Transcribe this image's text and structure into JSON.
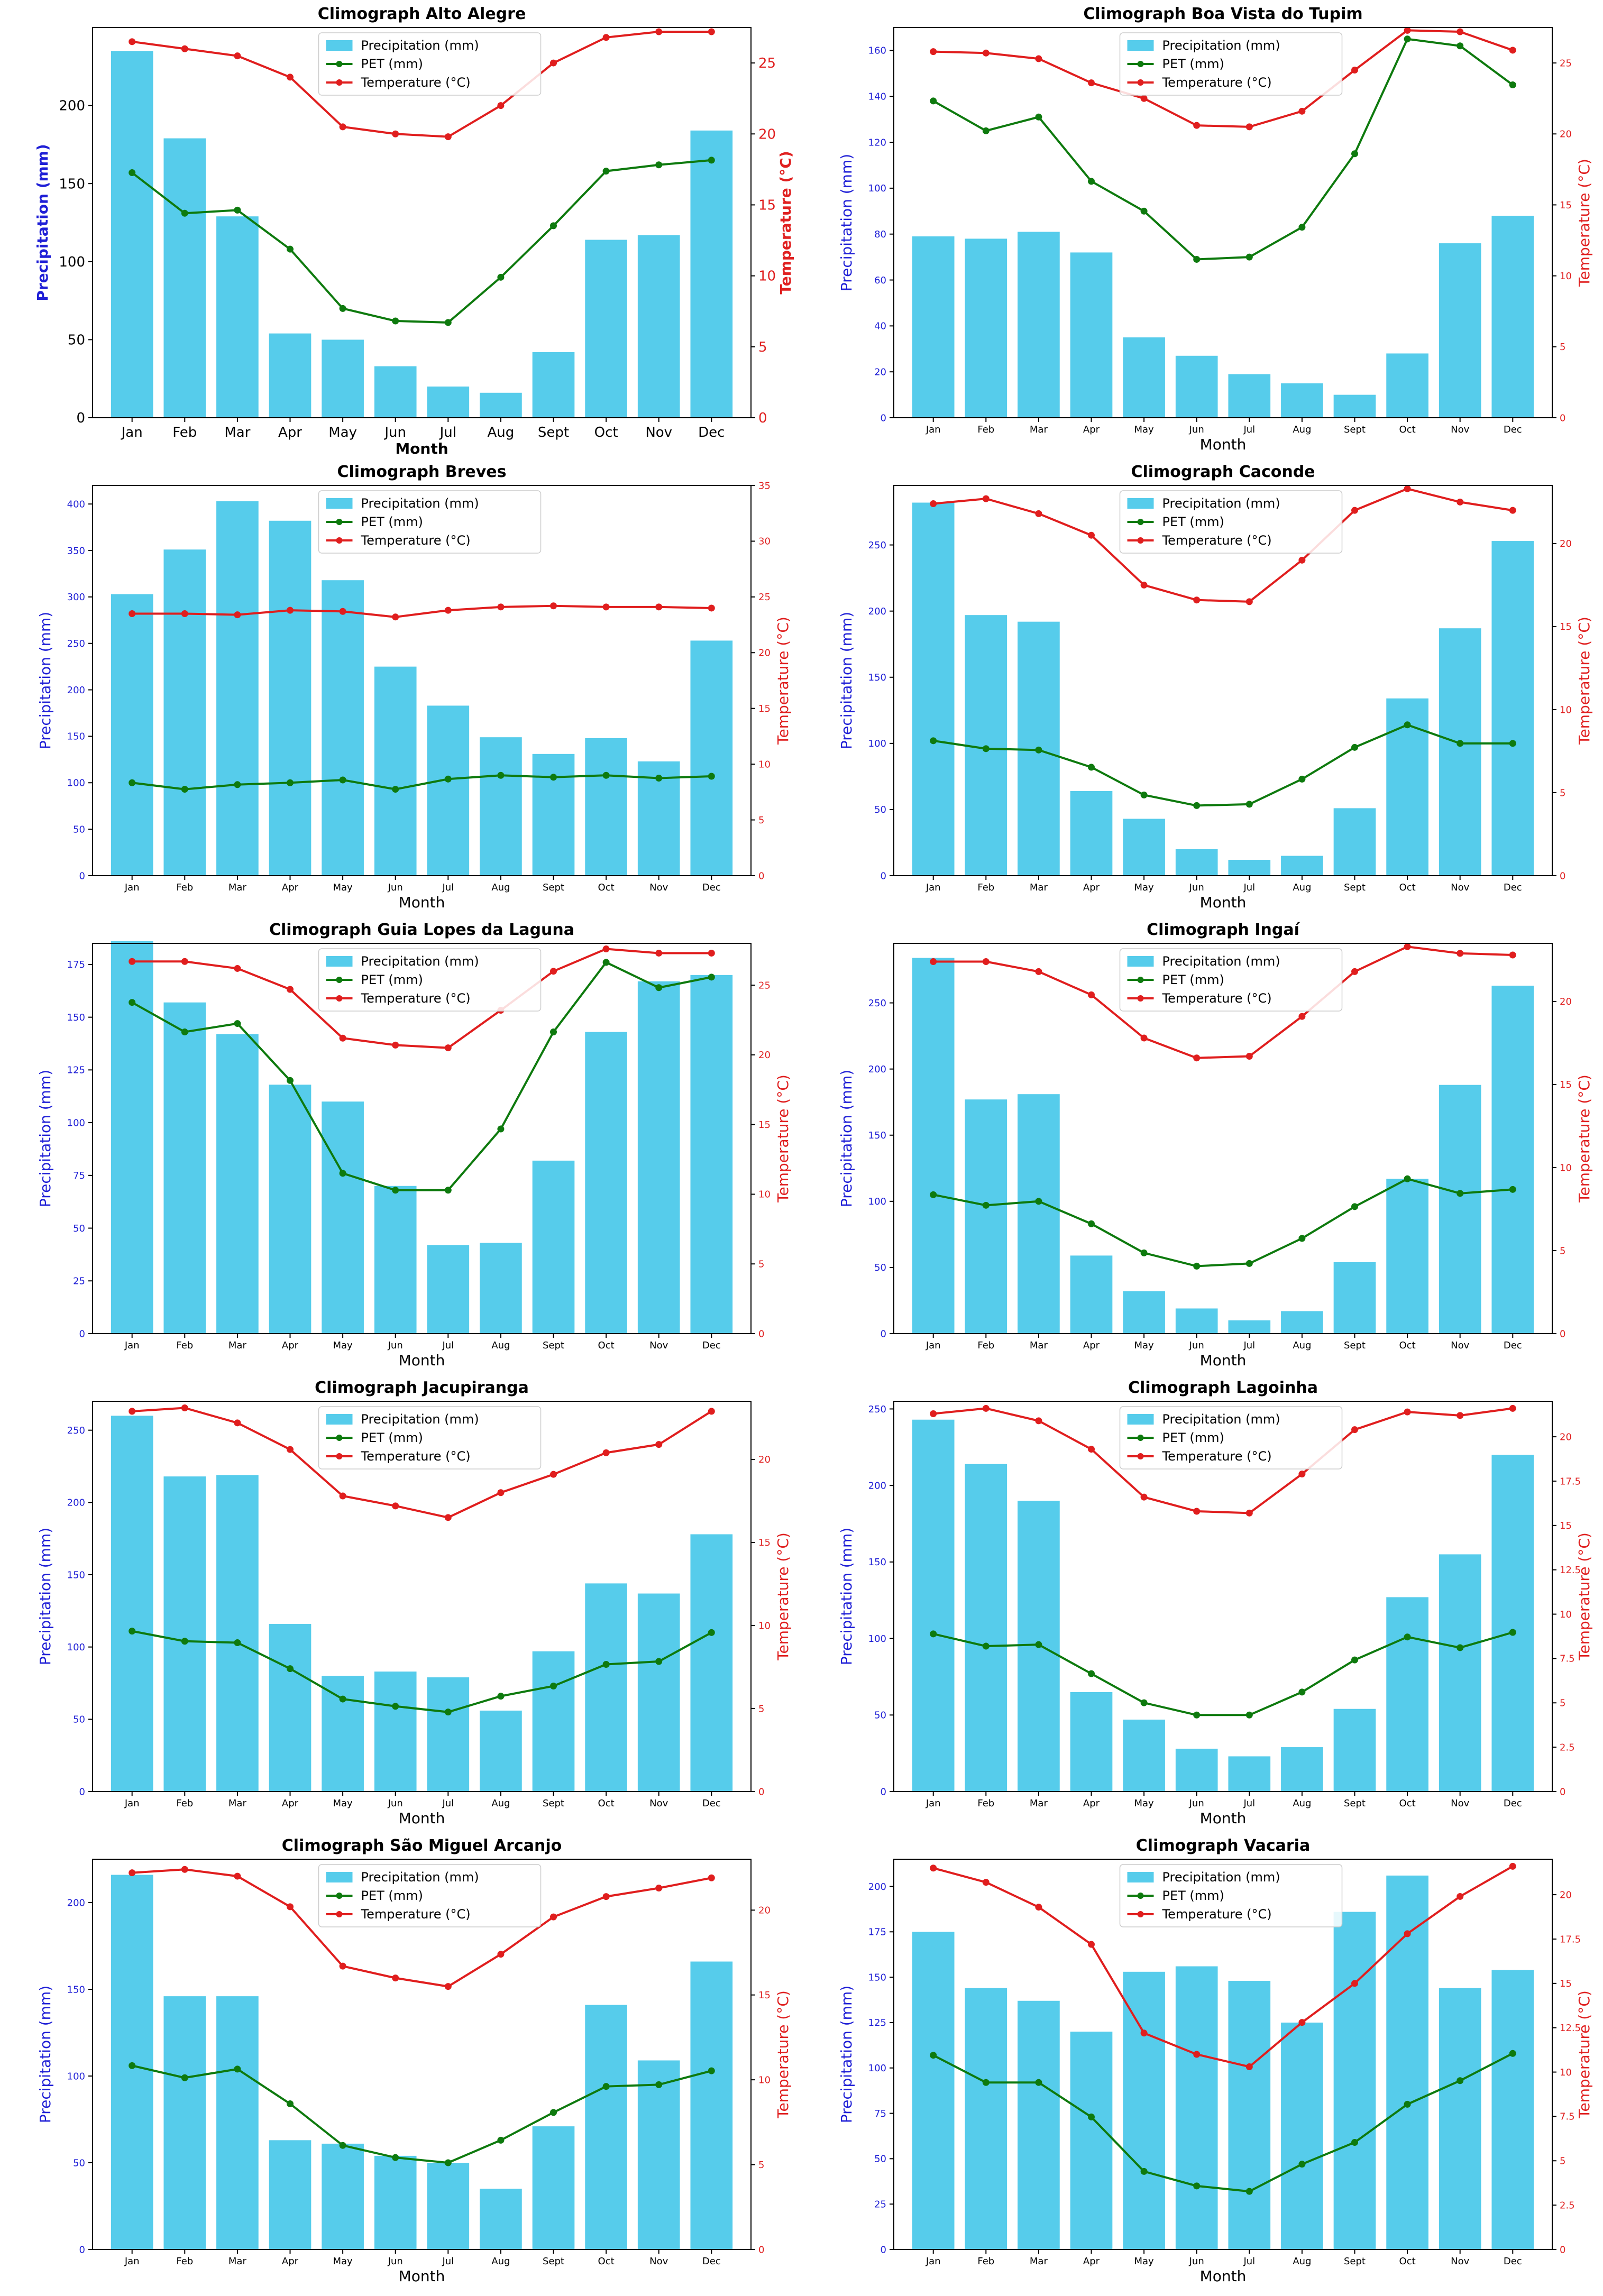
{
  "chart_data": [
    {
      "type": "bar",
      "title": "Climograph Alto Alegre",
      "xlabel": "Month",
      "ylabel_left": "Precipitation (mm)",
      "ylabel_right": "Temperature (°C)",
      "categories": [
        "Jan",
        "Feb",
        "Mar",
        "Apr",
        "May",
        "Jun",
        "Jul",
        "Aug",
        "Sept",
        "Oct",
        "Nov",
        "Dec"
      ],
      "ylim_left": [
        0,
        250
      ],
      "yticks_left": [
        0,
        50,
        100,
        150,
        200
      ],
      "ylim_right": [
        0,
        27.5
      ],
      "yticks_right": [
        0,
        5,
        10,
        15,
        20,
        25
      ],
      "bold_labels": true,
      "legend": [
        "Precipitation (mm)",
        "PET (mm)",
        "Temperature (°C)"
      ],
      "series": [
        {
          "name": "Precipitation (mm)",
          "type": "bar",
          "color": "#56cceb",
          "values": [
            235,
            179,
            129,
            54,
            50,
            33,
            20,
            16,
            42,
            114,
            117,
            184
          ]
        },
        {
          "name": "PET (mm)",
          "type": "line",
          "color": "#0e7a0e",
          "values": [
            157,
            131,
            133,
            108,
            70,
            62,
            61,
            90,
            123,
            158,
            162,
            165
          ]
        },
        {
          "name": "Temperature (°C)",
          "type": "line",
          "axis": "right",
          "color": "#e01e1e",
          "values": [
            26.5,
            26.0,
            25.5,
            24.0,
            20.5,
            20.0,
            19.8,
            22.0,
            25.0,
            26.8,
            27.2,
            27.2
          ]
        }
      ]
    },
    {
      "type": "bar",
      "title": "Climograph Boa Vista do Tupim",
      "xlabel": "Month",
      "ylabel_left": "Precipitation (mm)",
      "ylabel_right": "Temperature (°C)",
      "categories": [
        "Jan",
        "Feb",
        "Mar",
        "Apr",
        "May",
        "Jun",
        "Jul",
        "Aug",
        "Sept",
        "Oct",
        "Nov",
        "Dec"
      ],
      "ylim_left": [
        0,
        170
      ],
      "yticks_left": [
        0,
        20,
        40,
        60,
        80,
        100,
        120,
        140,
        160
      ],
      "ylim_right": [
        0,
        27.5
      ],
      "yticks_right": [
        0,
        5,
        10,
        15,
        20,
        25
      ],
      "bold_labels": false,
      "legend": [
        "Precipitation (mm)",
        "PET (mm)",
        "Temperature (°C)"
      ],
      "series": [
        {
          "name": "Precipitation (mm)",
          "type": "bar",
          "color": "#56cceb",
          "values": [
            79,
            78,
            81,
            72,
            35,
            27,
            19,
            15,
            10,
            28,
            76,
            88
          ]
        },
        {
          "name": "PET (mm)",
          "type": "line",
          "color": "#0e7a0e",
          "values": [
            138,
            125,
            131,
            103,
            90,
            69,
            70,
            83,
            115,
            165,
            162,
            145
          ]
        },
        {
          "name": "Temperature (°C)",
          "type": "line",
          "axis": "right",
          "color": "#e01e1e",
          "values": [
            25.8,
            25.7,
            25.3,
            23.6,
            22.5,
            20.6,
            20.5,
            21.6,
            24.5,
            27.3,
            27.2,
            25.9
          ]
        }
      ]
    },
    {
      "type": "bar",
      "title": "Climograph Breves",
      "xlabel": "Month",
      "ylabel_left": "Precipitation (mm)",
      "ylabel_right": "Temperature (°C)",
      "categories": [
        "Jan",
        "Feb",
        "Mar",
        "Apr",
        "May",
        "Jun",
        "Jul",
        "Aug",
        "Sept",
        "Oct",
        "Nov",
        "Dec"
      ],
      "ylim_left": [
        0,
        420
      ],
      "yticks_left": [
        0,
        50,
        100,
        150,
        200,
        250,
        300,
        350,
        400
      ],
      "ylim_right": [
        0,
        35
      ],
      "yticks_right": [
        0,
        5,
        10,
        15,
        20,
        25,
        30,
        35
      ],
      "bold_labels": false,
      "legend": [
        "Precipitation (mm)",
        "PET (mm)",
        "Temperature (°C)"
      ],
      "series": [
        {
          "name": "Precipitation (mm)",
          "type": "bar",
          "color": "#56cceb",
          "values": [
            303,
            351,
            403,
            382,
            318,
            225,
            183,
            149,
            131,
            148,
            123,
            253
          ]
        },
        {
          "name": "PET (mm)",
          "type": "line",
          "color": "#0e7a0e",
          "values": [
            100,
            93,
            98,
            100,
            103,
            93,
            104,
            108,
            106,
            108,
            105,
            107
          ]
        },
        {
          "name": "Temperature (°C)",
          "type": "line",
          "axis": "right",
          "color": "#e01e1e",
          "values": [
            23.5,
            23.5,
            23.4,
            23.8,
            23.7,
            23.2,
            23.8,
            24.1,
            24.2,
            24.1,
            24.1,
            24.0
          ]
        }
      ]
    },
    {
      "type": "bar",
      "title": "Climograph Caconde",
      "xlabel": "Month",
      "ylabel_left": "Precipitation (mm)",
      "ylabel_right": "Temperature (°C)",
      "categories": [
        "Jan",
        "Feb",
        "Mar",
        "Apr",
        "May",
        "Jun",
        "Jul",
        "Aug",
        "Sept",
        "Oct",
        "Nov",
        "Dec"
      ],
      "ylim_left": [
        0,
        295
      ],
      "yticks_left": [
        0,
        50,
        100,
        150,
        200,
        250
      ],
      "ylim_right": [
        0,
        23.5
      ],
      "yticks_right": [
        0,
        5,
        10,
        15,
        20
      ],
      "bold_labels": false,
      "legend": [
        "Precipitation (mm)",
        "PET (mm)",
        "Temperature (°C)"
      ],
      "series": [
        {
          "name": "Precipitation (mm)",
          "type": "bar",
          "color": "#56cceb",
          "values": [
            282,
            197,
            192,
            64,
            43,
            20,
            12,
            15,
            51,
            134,
            187,
            253
          ]
        },
        {
          "name": "PET (mm)",
          "type": "line",
          "color": "#0e7a0e",
          "values": [
            102,
            96,
            95,
            82,
            61,
            53,
            54,
            73,
            97,
            114,
            100,
            100
          ]
        },
        {
          "name": "Temperature (°C)",
          "type": "line",
          "axis": "right",
          "color": "#e01e1e",
          "values": [
            22.4,
            22.7,
            21.8,
            20.5,
            17.5,
            16.6,
            16.5,
            19.0,
            22.0,
            23.3,
            22.5,
            22.0
          ]
        }
      ]
    },
    {
      "type": "bar",
      "title": "Climograph Guia Lopes da Laguna",
      "xlabel": "Month",
      "ylabel_left": "Precipitation (mm)",
      "ylabel_right": "Temperature (°C)",
      "categories": [
        "Jan",
        "Feb",
        "Mar",
        "Apr",
        "May",
        "Jun",
        "Jul",
        "Aug",
        "Sept",
        "Oct",
        "Nov",
        "Dec"
      ],
      "ylim_left": [
        0,
        185
      ],
      "yticks_left": [
        0,
        25,
        50,
        75,
        100,
        125,
        150,
        175
      ],
      "ylim_right": [
        0,
        28
      ],
      "yticks_right": [
        0,
        5,
        10,
        15,
        20,
        25
      ],
      "bold_labels": false,
      "legend": [
        "Precipitation (mm)",
        "PET (mm)",
        "Temperature (°C)"
      ],
      "series": [
        {
          "name": "Precipitation (mm)",
          "type": "bar",
          "color": "#56cceb",
          "values": [
            186,
            157,
            142,
            118,
            110,
            70,
            42,
            43,
            82,
            143,
            167,
            170
          ]
        },
        {
          "name": "PET (mm)",
          "type": "line",
          "color": "#0e7a0e",
          "values": [
            157,
            143,
            147,
            120,
            76,
            68,
            68,
            97,
            143,
            176,
            164,
            169
          ]
        },
        {
          "name": "Temperature (°C)",
          "type": "line",
          "axis": "right",
          "color": "#e01e1e",
          "values": [
            26.7,
            26.7,
            26.2,
            24.7,
            21.2,
            20.7,
            20.5,
            23.2,
            26.0,
            27.6,
            27.3,
            27.3
          ]
        }
      ]
    },
    {
      "type": "bar",
      "title": "Climograph Ingaí",
      "xlabel": "Month",
      "ylabel_left": "Precipitation (mm)",
      "ylabel_right": "Temperature (°C)",
      "categories": [
        "Jan",
        "Feb",
        "Mar",
        "Apr",
        "May",
        "Jun",
        "Jul",
        "Aug",
        "Sept",
        "Oct",
        "Nov",
        "Dec"
      ],
      "ylim_left": [
        0,
        295
      ],
      "yticks_left": [
        0,
        50,
        100,
        150,
        200,
        250
      ],
      "ylim_right": [
        0,
        23.5
      ],
      "yticks_right": [
        0,
        5,
        10,
        15,
        20
      ],
      "bold_labels": false,
      "legend": [
        "Precipitation (mm)",
        "PET (mm)",
        "Temperature (°C)"
      ],
      "series": [
        {
          "name": "Precipitation (mm)",
          "type": "bar",
          "color": "#56cceb",
          "values": [
            284,
            177,
            181,
            59,
            32,
            19,
            10,
            17,
            54,
            117,
            188,
            263
          ]
        },
        {
          "name": "PET (mm)",
          "type": "line",
          "color": "#0e7a0e",
          "values": [
            105,
            97,
            100,
            83,
            61,
            51,
            53,
            72,
            96,
            117,
            106,
            109
          ]
        },
        {
          "name": "Temperature (°C)",
          "type": "line",
          "axis": "right",
          "color": "#e01e1e",
          "values": [
            22.4,
            22.4,
            21.8,
            20.4,
            17.8,
            16.6,
            16.7,
            19.1,
            21.8,
            23.3,
            22.9,
            22.8
          ]
        }
      ]
    },
    {
      "type": "bar",
      "title": "Climograph Jacupiranga",
      "xlabel": "Month",
      "ylabel_left": "Precipitation (mm)",
      "ylabel_right": "Temperature (°C)",
      "categories": [
        "Jan",
        "Feb",
        "Mar",
        "Apr",
        "May",
        "Jun",
        "Jul",
        "Aug",
        "Sept",
        "Oct",
        "Nov",
        "Dec"
      ],
      "ylim_left": [
        0,
        270
      ],
      "yticks_left": [
        0,
        50,
        100,
        150,
        200,
        250
      ],
      "ylim_right": [
        0,
        23.5
      ],
      "yticks_right": [
        0,
        5,
        10,
        15,
        20
      ],
      "bold_labels": false,
      "legend": [
        "Precipitation (mm)",
        "PET (mm)",
        "Temperature (°C)"
      ],
      "series": [
        {
          "name": "Precipitation (mm)",
          "type": "bar",
          "color": "#56cceb",
          "values": [
            260,
            218,
            219,
            116,
            80,
            83,
            79,
            56,
            97,
            144,
            137,
            178
          ]
        },
        {
          "name": "PET (mm)",
          "type": "line",
          "color": "#0e7a0e",
          "values": [
            111,
            104,
            103,
            85,
            64,
            59,
            55,
            66,
            73,
            88,
            90,
            110
          ]
        },
        {
          "name": "Temperature (°C)",
          "type": "line",
          "axis": "right",
          "color": "#e01e1e",
          "values": [
            22.9,
            23.1,
            22.2,
            20.6,
            17.8,
            17.2,
            16.5,
            18.0,
            19.1,
            20.4,
            20.9,
            22.9
          ]
        }
      ]
    },
    {
      "type": "bar",
      "title": "Climograph Lagoinha",
      "xlabel": "Month",
      "ylabel_left": "Precipitation (mm)",
      "ylabel_right": "Temperature (°C)",
      "categories": [
        "Jan",
        "Feb",
        "Mar",
        "Apr",
        "May",
        "Jun",
        "Jul",
        "Aug",
        "Sept",
        "Oct",
        "Nov",
        "Dec"
      ],
      "ylim_left": [
        0,
        255
      ],
      "yticks_left": [
        0,
        50,
        100,
        150,
        200,
        250
      ],
      "ylim_right": [
        0,
        22
      ],
      "yticks_right": [
        0.0,
        2.5,
        5.0,
        7.5,
        10.0,
        12.5,
        15.0,
        17.5,
        20.0
      ],
      "bold_labels": false,
      "legend": [
        "Precipitation (mm)",
        "PET (mm)",
        "Temperature (°C)"
      ],
      "series": [
        {
          "name": "Precipitation (mm)",
          "type": "bar",
          "color": "#56cceb",
          "values": [
            243,
            214,
            190,
            65,
            47,
            28,
            23,
            29,
            54,
            127,
            155,
            220
          ]
        },
        {
          "name": "PET (mm)",
          "type": "line",
          "color": "#0e7a0e",
          "values": [
            103,
            95,
            96,
            77,
            58,
            50,
            50,
            65,
            86,
            101,
            94,
            104
          ]
        },
        {
          "name": "Temperature (°C)",
          "type": "line",
          "axis": "right",
          "color": "#e01e1e",
          "values": [
            21.3,
            21.6,
            20.9,
            19.3,
            16.6,
            15.8,
            15.7,
            17.9,
            20.4,
            21.4,
            21.2,
            21.6
          ]
        }
      ]
    },
    {
      "type": "bar",
      "title": "Climograph São Miguel Arcanjo",
      "xlabel": "Month",
      "ylabel_left": "Precipitation (mm)",
      "ylabel_right": "Temperature (°C)",
      "categories": [
        "Jan",
        "Feb",
        "Mar",
        "Apr",
        "May",
        "Jun",
        "Jul",
        "Aug",
        "Sept",
        "Oct",
        "Nov",
        "Dec"
      ],
      "ylim_left": [
        0,
        225
      ],
      "yticks_left": [
        0,
        50,
        100,
        150,
        200
      ],
      "ylim_right": [
        0,
        23
      ],
      "yticks_right": [
        0,
        5,
        10,
        15,
        20
      ],
      "bold_labels": false,
      "legend": [
        "Precipitation (mm)",
        "PET (mm)",
        "Temperature (°C)"
      ],
      "series": [
        {
          "name": "Precipitation (mm)",
          "type": "bar",
          "color": "#56cceb",
          "values": [
            216,
            146,
            146,
            63,
            61,
            54,
            50,
            35,
            71,
            141,
            109,
            166
          ]
        },
        {
          "name": "PET (mm)",
          "type": "line",
          "color": "#0e7a0e",
          "values": [
            106,
            99,
            104,
            84,
            60,
            53,
            50,
            63,
            79,
            94,
            95,
            103
          ]
        },
        {
          "name": "Temperature (°C)",
          "type": "line",
          "axis": "right",
          "color": "#e01e1e",
          "values": [
            22.2,
            22.4,
            22.0,
            20.2,
            16.7,
            16.0,
            15.5,
            17.4,
            19.6,
            20.8,
            21.3,
            21.9
          ]
        }
      ]
    },
    {
      "type": "bar",
      "title": "Climograph Vacaria",
      "xlabel": "Month",
      "ylabel_left": "Precipitation (mm)",
      "ylabel_right": "Temperature (°C)",
      "categories": [
        "Jan",
        "Feb",
        "Mar",
        "Apr",
        "May",
        "Jun",
        "Jul",
        "Aug",
        "Sept",
        "Oct",
        "Nov",
        "Dec"
      ],
      "ylim_left": [
        0,
        215
      ],
      "yticks_left": [
        0,
        25,
        50,
        75,
        100,
        125,
        150,
        175,
        200
      ],
      "ylim_right": [
        0,
        22
      ],
      "yticks_right": [
        0.0,
        2.5,
        5.0,
        7.5,
        10.0,
        12.5,
        15.0,
        17.5,
        20.0
      ],
      "bold_labels": false,
      "legend": [
        "Precipitation (mm)",
        "PET (mm)",
        "Temperature (°C)"
      ],
      "series": [
        {
          "name": "Precipitation (mm)",
          "type": "bar",
          "color": "#56cceb",
          "values": [
            175,
            144,
            137,
            120,
            153,
            156,
            148,
            125,
            186,
            206,
            144,
            154
          ]
        },
        {
          "name": "PET (mm)",
          "type": "line",
          "color": "#0e7a0e",
          "values": [
            107,
            92,
            92,
            73,
            43,
            35,
            32,
            47,
            59,
            80,
            93,
            108
          ]
        },
        {
          "name": "Temperature (°C)",
          "type": "line",
          "axis": "right",
          "color": "#e01e1e",
          "values": [
            21.5,
            20.7,
            19.3,
            17.2,
            12.2,
            11.0,
            10.3,
            12.8,
            15.0,
            17.8,
            19.9,
            21.6
          ]
        }
      ]
    }
  ]
}
